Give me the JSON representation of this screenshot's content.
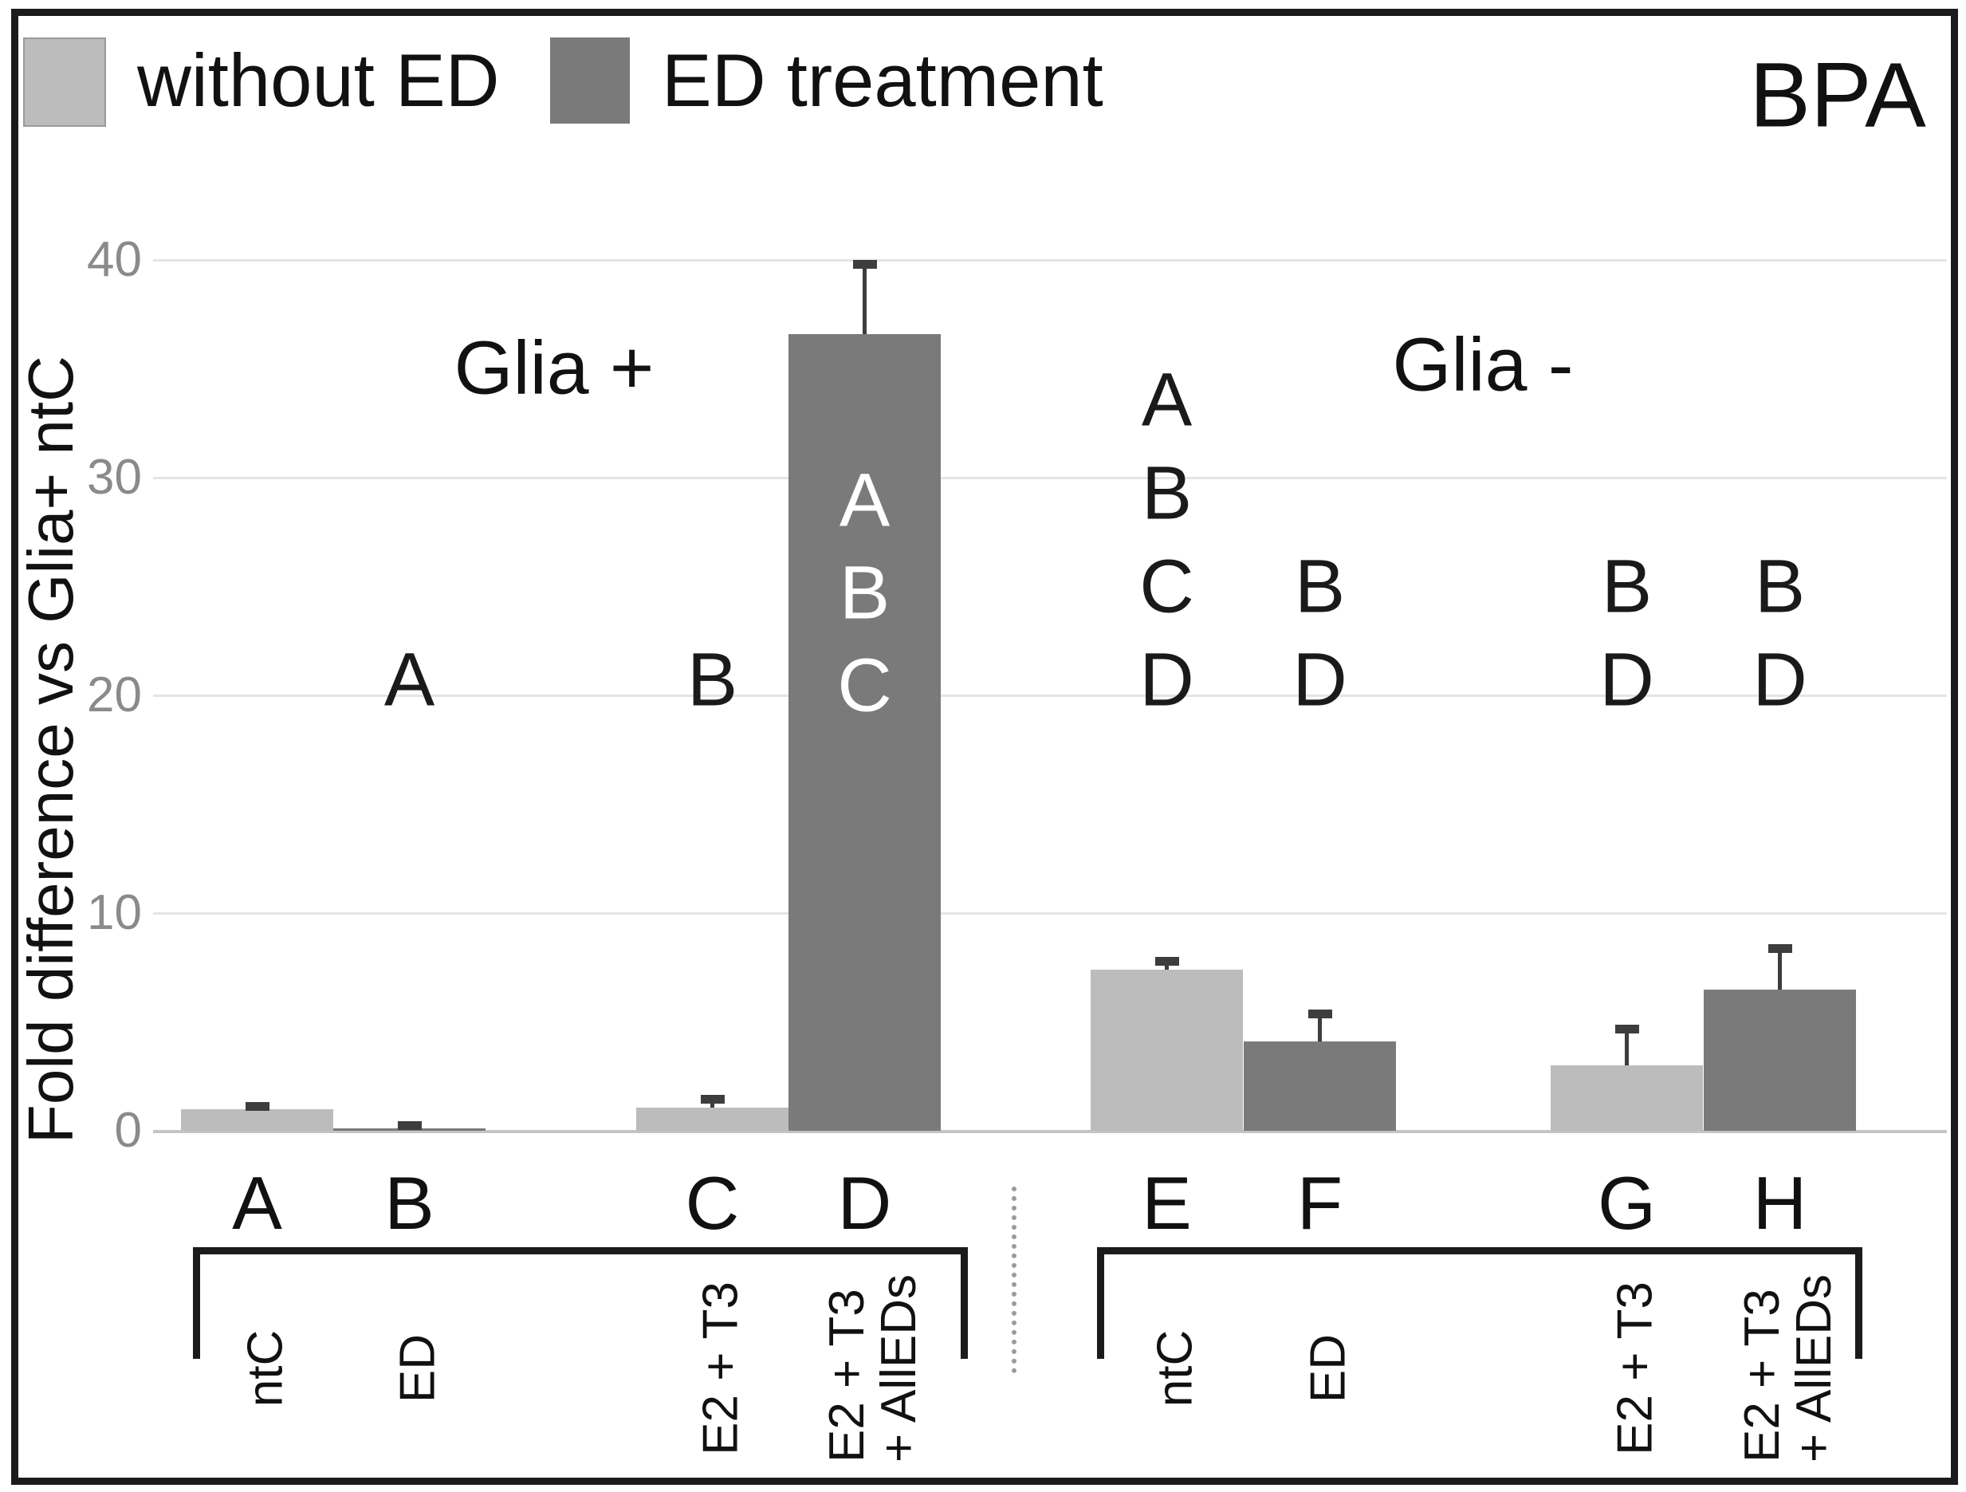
{
  "figure": {
    "panel_label": "BPA",
    "y_axis_title": "Fold difference vs Glia+ ntC",
    "legend": [
      {
        "label": "without ED",
        "color": "#bcbcbc"
      },
      {
        "label": "ED treatment",
        "color": "#7a7a7a"
      }
    ],
    "colors": {
      "light_bar": "#bcbcbc",
      "dark_bar": "#7a7a7a",
      "error": "#3d3d3d",
      "grid": "#e4e4e4",
      "zero_line": "#c4c4c4",
      "tick_label": "#8a8a8a",
      "sig_inside": "#ffffff",
      "text": "#1a1a1a"
    }
  },
  "chart_data": {
    "type": "bar",
    "title": "BPA",
    "ylabel": "Fold difference vs Glia+ ntC",
    "ylim": [
      0,
      40
    ],
    "yticks": [
      0,
      10,
      20,
      30,
      40
    ],
    "grid": true,
    "legend_position": "top-left",
    "legend": [
      "without ED",
      "ED treatment"
    ],
    "groups": [
      {
        "name": "Glia +",
        "bars": [
          "A",
          "B",
          "C",
          "D"
        ]
      },
      {
        "name": "Glia -",
        "bars": [
          "E",
          "F",
          "G",
          "H"
        ]
      }
    ],
    "treatment_labels": [
      "ntC",
      "ED",
      "E2 + T3",
      "E2 + T3 + AllEDs"
    ],
    "bars": [
      {
        "id": "A",
        "group": "Glia +",
        "treatment": "ntC",
        "series": "without ED",
        "value": 1.0,
        "error": 0.15
      },
      {
        "id": "B",
        "group": "Glia +",
        "treatment": "ED",
        "series": "ED treatment",
        "value": 0.1,
        "error": 0.15
      },
      {
        "id": "C",
        "group": "Glia +",
        "treatment": "E2 + T3",
        "series": "without ED",
        "value": 1.05,
        "error": 0.4
      },
      {
        "id": "D",
        "group": "Glia +",
        "treatment": "E2 + T3 + AllEDs",
        "series": "ED treatment",
        "value": 36.6,
        "error": 3.2
      },
      {
        "id": "E",
        "group": "Glia -",
        "treatment": "ntC",
        "series": "without ED",
        "value": 7.4,
        "error": 0.4
      },
      {
        "id": "F",
        "group": "Glia -",
        "treatment": "ED",
        "series": "ED treatment",
        "value": 4.1,
        "error": 1.3
      },
      {
        "id": "G",
        "group": "Glia -",
        "treatment": "E2 + T3",
        "series": "without ED",
        "value": 3.0,
        "error": 1.7
      },
      {
        "id": "H",
        "group": "Glia -",
        "treatment": "E2 + T3 + AllEDs",
        "series": "ED treatment",
        "value": 6.5,
        "error": 1.9
      }
    ],
    "significance": [
      {
        "bar": "B",
        "letters": [
          "A"
        ],
        "placement": "above"
      },
      {
        "bar": "C",
        "letters": [
          "B"
        ],
        "placement": "above"
      },
      {
        "bar": "D",
        "letters": [
          "A",
          "B",
          "C"
        ],
        "placement": "inside"
      },
      {
        "bar": "E",
        "letters": [
          "A",
          "B",
          "C",
          "D"
        ],
        "placement": "above"
      },
      {
        "bar": "F",
        "letters": [
          "B",
          "D"
        ],
        "placement": "above"
      },
      {
        "bar": "G",
        "letters": [
          "B",
          "D"
        ],
        "placement": "above"
      },
      {
        "bar": "H",
        "letters": [
          "B",
          "D"
        ],
        "placement": "above"
      }
    ]
  }
}
